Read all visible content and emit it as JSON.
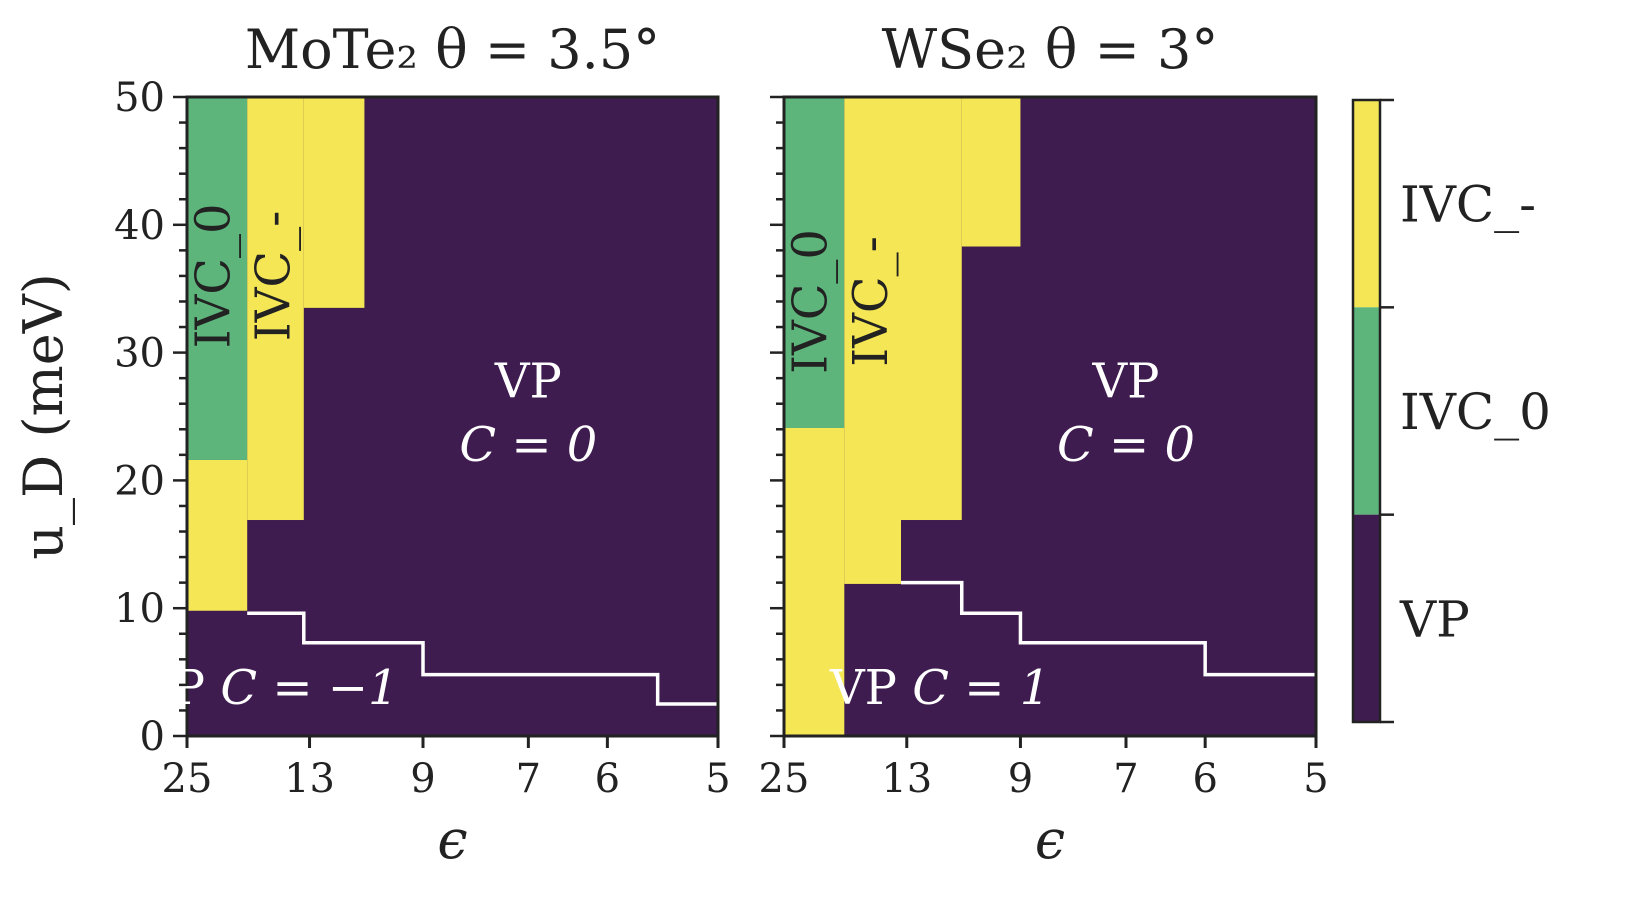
{
  "chart_data": [
    {
      "type": "heatmap",
      "title": "MoTe₂ θ = 3.5°",
      "xlabel": "ϵ",
      "ylabel": "u_D (meV)",
      "x_scale": "reciprocal",
      "xlim": [
        25,
        5
      ],
      "ylim": [
        0,
        50
      ],
      "xticks": [
        "25",
        "13",
        "9",
        "7",
        "6",
        "5"
      ],
      "xtick_values": [
        25,
        13,
        9,
        7,
        6,
        5
      ],
      "yticks": [
        "0",
        "10",
        "20",
        "30",
        "40",
        "50"
      ],
      "ytick_values": [
        0,
        10,
        20,
        30,
        40,
        50
      ],
      "background_phase": "VP",
      "regions": [
        {
          "phase": "IVC_-",
          "eps": [
            25,
            17.2
          ],
          "u": [
            9.8,
            21.6
          ]
        },
        {
          "phase": "IVC_0",
          "eps": [
            25,
            17.2
          ],
          "u": [
            21.6,
            50
          ]
        },
        {
          "phase": "IVC_-",
          "eps": [
            17.2,
            13.3
          ],
          "u": [
            16.9,
            50
          ]
        },
        {
          "phase": "IVC_-",
          "eps": [
            13.3,
            10.7
          ],
          "u": [
            33.5,
            50
          ]
        }
      ],
      "chern_boundary": [
        [
          17.2,
          9.6
        ],
        [
          13.3,
          9.6
        ],
        [
          13.3,
          7.3
        ],
        [
          9,
          7.3
        ],
        [
          9,
          4.8
        ],
        [
          5.5,
          4.8
        ],
        [
          5.5,
          2.5
        ],
        [
          5,
          2.5
        ]
      ],
      "annotations": [
        {
          "text": "IVC",
          "sub": "0",
          "eps": 21,
          "u": 36,
          "rotate": true,
          "color": "#222222"
        },
        {
          "text": "IVC",
          "sub": "_",
          "eps": 15.2,
          "u": 36,
          "rotate": true,
          "color": "#222222"
        },
        {
          "text": "VP",
          "eps": 7,
          "u": 26.5,
          "color": "#ffffff"
        },
        {
          "text": "C = 0",
          "eps": 7,
          "u": 21.5,
          "italic": true,
          "color": "#ffffff"
        },
        {
          "text": "VP",
          "eps": 15.5,
          "u": 2.5,
          "color": "#ffffff",
          "suffix": "C = −1"
        }
      ]
    },
    {
      "type": "heatmap",
      "title": "WSe₂ θ = 3°",
      "xlabel": "ϵ",
      "x_scale": "reciprocal",
      "xlim": [
        25,
        5
      ],
      "ylim": [
        0,
        50
      ],
      "xticks": [
        "25",
        "13",
        "9",
        "7",
        "6",
        "5"
      ],
      "xtick_values": [
        25,
        13,
        9,
        7,
        6,
        5
      ],
      "background_phase": "VP",
      "regions": [
        {
          "phase": "IVC_-",
          "eps": [
            25,
            17.2
          ],
          "u": [
            0,
            24.1
          ]
        },
        {
          "phase": "IVC_0",
          "eps": [
            25,
            17.2
          ],
          "u": [
            24.1,
            50
          ]
        },
        {
          "phase": "IVC_-",
          "eps": [
            17.2,
            13.3
          ],
          "u": [
            11.9,
            50
          ]
        },
        {
          "phase": "IVC_-",
          "eps": [
            13.3,
            10.7
          ],
          "u": [
            16.9,
            50
          ]
        },
        {
          "phase": "IVC_-",
          "eps": [
            10.7,
            9
          ],
          "u": [
            38.3,
            50
          ]
        }
      ],
      "chern_boundary": [
        [
          13.3,
          12.0
        ],
        [
          10.7,
          12.0
        ],
        [
          10.7,
          9.6
        ],
        [
          9,
          9.6
        ],
        [
          9,
          7.3
        ],
        [
          6,
          7.3
        ],
        [
          6,
          4.8
        ],
        [
          5,
          4.8
        ]
      ],
      "annotations": [
        {
          "text": "IVC",
          "sub": "0",
          "eps": 21,
          "u": 34,
          "rotate": true,
          "color": "#222222"
        },
        {
          "text": "IVC",
          "sub": "_",
          "eps": 15.2,
          "u": 34,
          "rotate": true,
          "color": "#222222"
        },
        {
          "text": "VP",
          "eps": 7,
          "u": 26.5,
          "color": "#ffffff"
        },
        {
          "text": "C = 0",
          "eps": 7,
          "u": 21.5,
          "italic": true,
          "color": "#ffffff"
        },
        {
          "text": "VP",
          "eps": 11.5,
          "u": 2.5,
          "color": "#ffffff",
          "suffix": "C = 1"
        }
      ]
    }
  ],
  "colorbar": {
    "labels": [
      "IVC_-",
      "IVC_0",
      "VP"
    ],
    "colors": {
      "VP": "#3f1c50",
      "IVC_0": "#5db57c",
      "IVC_-": "#f5e655"
    }
  }
}
